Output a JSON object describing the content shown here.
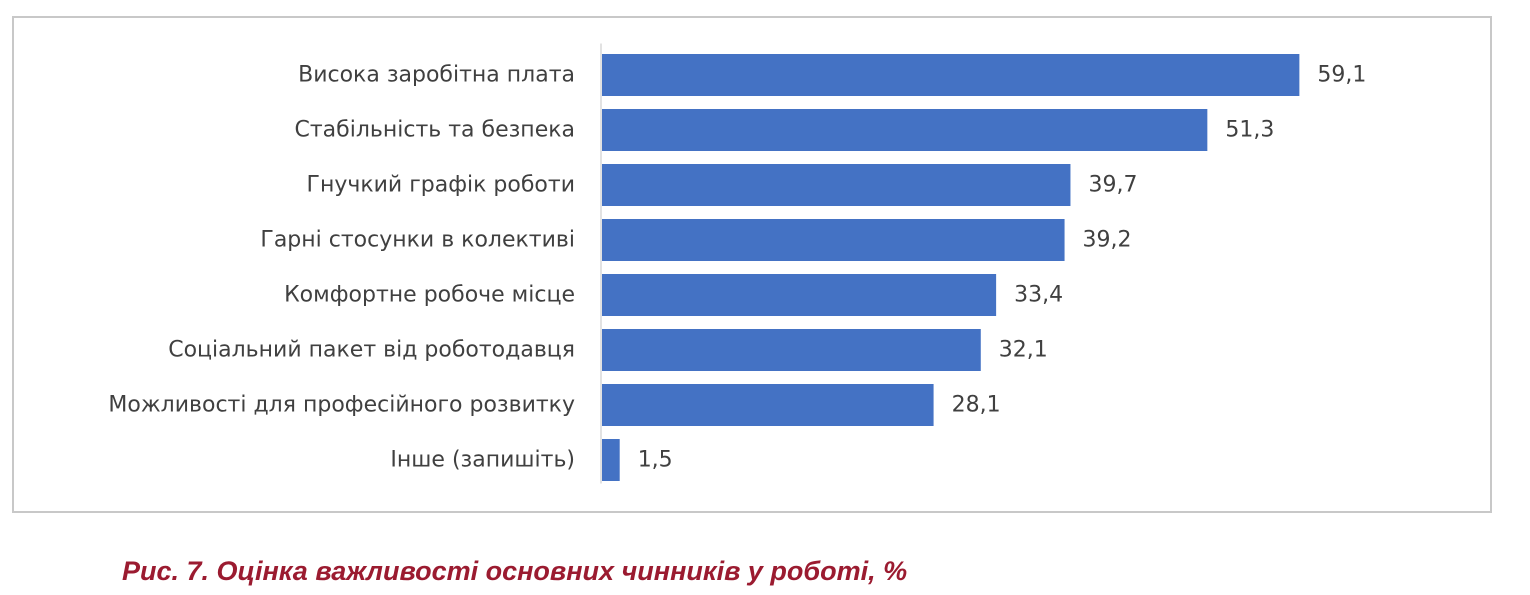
{
  "chart_data": {
    "type": "bar",
    "orientation": "horizontal",
    "categories": [
      "Висока заробітна плата",
      "Стабільність та безпека",
      "Гнучкий графік роботи",
      "Гарні стосунки в колективі",
      "Комфортне робоче місце",
      "Соціальний пакет від роботодавця",
      "Можливості для професійного розвитку",
      "Інше (запишіть)"
    ],
    "values": [
      59.1,
      51.3,
      39.7,
      39.2,
      33.4,
      32.1,
      28.1,
      1.5
    ],
    "value_labels": [
      "59,1",
      "51,3",
      "39,7",
      "39,2",
      "33,4",
      "32,1",
      "28,1",
      "1,5"
    ],
    "bar_color": "#4472c4",
    "xlim": [
      0,
      65
    ],
    "grid": false,
    "legend": "none"
  },
  "caption": "Рис. 7. Оцінка важливості основних чинників у роботі, %",
  "colors": {
    "frame_border": "#c8c8c8",
    "axis": "#d9d9d9",
    "text": "#404040",
    "caption": "#9b1b30"
  }
}
